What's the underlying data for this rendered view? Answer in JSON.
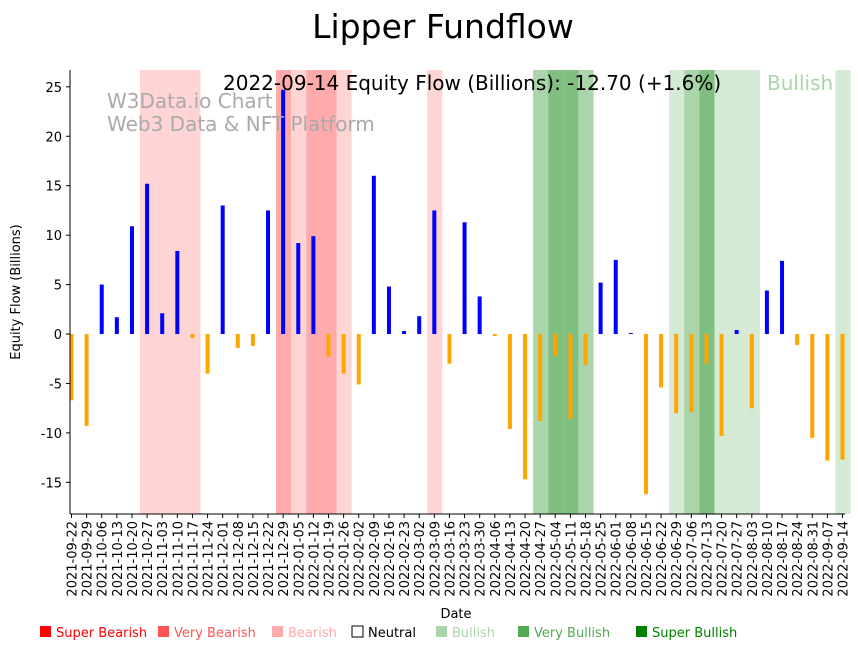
{
  "chart_data": {
    "type": "bar",
    "title": "Lipper Fundflow",
    "subtitle": "2022-09-14 Equity Flow (Billions): -12.70 (+1.6%)",
    "current_sentiment": "Bullish",
    "watermark": [
      "W3Data.io Chart",
      "Web3 Data & NFT Platform"
    ],
    "xlabel": "Date",
    "ylabel": "Equity Flow (Billions)",
    "ylim": [
      -18.2,
      26.7
    ],
    "yticks": [
      -15,
      -10,
      -5,
      0,
      5,
      10,
      15,
      20,
      25
    ],
    "grid": false,
    "legend_position": "bottom",
    "colors": {
      "positive": "#0000ff",
      "negative": "#ffa500"
    },
    "categories": [
      "2021-09-22",
      "2021-09-29",
      "2021-10-06",
      "2021-10-13",
      "2021-10-20",
      "2021-10-27",
      "2021-11-03",
      "2021-11-10",
      "2021-11-17",
      "2021-11-24",
      "2021-12-01",
      "2021-12-08",
      "2021-12-15",
      "2021-12-22",
      "2021-12-29",
      "2022-01-05",
      "2022-01-12",
      "2022-01-19",
      "2022-01-26",
      "2022-02-02",
      "2022-02-09",
      "2022-02-16",
      "2022-02-23",
      "2022-03-02",
      "2022-03-09",
      "2022-03-16",
      "2022-03-23",
      "2022-03-30",
      "2022-04-06",
      "2022-04-13",
      "2022-04-20",
      "2022-04-27",
      "2022-05-04",
      "2022-05-11",
      "2022-05-18",
      "2022-05-25",
      "2022-06-01",
      "2022-06-08",
      "2022-06-15",
      "2022-06-22",
      "2022-06-29",
      "2022-07-06",
      "2022-07-13",
      "2022-07-20",
      "2022-07-27",
      "2022-08-03",
      "2022-08-10",
      "2022-08-17",
      "2022-08-24",
      "2022-08-31",
      "2022-09-07",
      "2022-09-14"
    ],
    "values": [
      -6.7,
      -9.3,
      5.0,
      1.7,
      10.9,
      15.2,
      2.1,
      8.4,
      -0.4,
      -4.0,
      13.0,
      -1.4,
      -1.2,
      12.5,
      24.7,
      9.2,
      9.9,
      -2.3,
      -4.0,
      -5.1,
      16.0,
      4.8,
      0.3,
      1.8,
      12.5,
      -3.0,
      11.3,
      3.8,
      -0.2,
      -9.6,
      -14.7,
      -8.8,
      -2.2,
      -8.6,
      -3.1,
      5.2,
      7.5,
      0.1,
      -16.2,
      -5.4,
      -8.0,
      -7.9,
      -3.0,
      -10.3,
      0.4,
      -7.5,
      4.4,
      7.4,
      -1.1,
      -10.5,
      -12.8,
      -12.7
    ],
    "sentiment": [
      "n",
      "n",
      "n",
      "n",
      "n",
      "b-",
      "b-",
      "b-",
      "b-",
      "n",
      "n",
      "n",
      "n",
      "n",
      "b--",
      "b-",
      "b--",
      "b--",
      "b-",
      "n",
      "n",
      "n",
      "n",
      "n",
      "b-",
      "n",
      "n",
      "n",
      "n",
      "n",
      "n",
      "g+",
      "g++",
      "g++",
      "g+",
      "n",
      "n",
      "n",
      "n",
      "n",
      "g",
      "g+",
      "g++",
      "g",
      "g",
      "g",
      "n",
      "n",
      "n",
      "n",
      "n",
      "g"
    ],
    "band_colors": {
      "b-": "#ffd4d4",
      "b--": "#ffaaaa",
      "g": "#d4ead4",
      "g+": "#aad5aa",
      "g++": "#80bf80"
    },
    "legend": [
      {
        "label": "Super Bearish",
        "color": "#ff0000"
      },
      {
        "label": "Very Bearish",
        "color": "#ff5555"
      },
      {
        "label": "Bearish",
        "color": "#ffaaaa"
      },
      {
        "label": "Neutral",
        "color": "#ffffff",
        "text_color": "#000000"
      },
      {
        "label": "Bullish",
        "color": "#aad5aa"
      },
      {
        "label": "Very Bullish",
        "color": "#55aa55"
      },
      {
        "label": "Super Bullish",
        "color": "#008000"
      }
    ]
  }
}
